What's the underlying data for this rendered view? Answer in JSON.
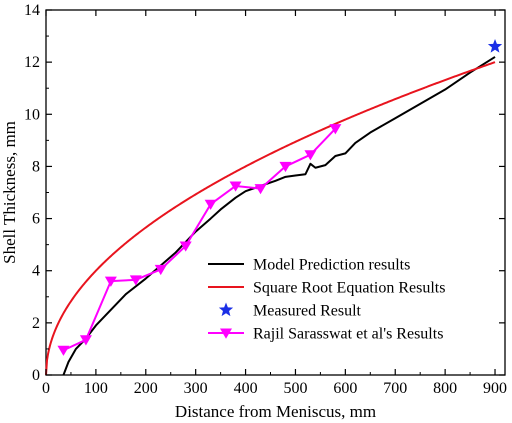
{
  "chart_data": {
    "type": "line",
    "title": "",
    "xlabel": "Distance from Meniscus, mm",
    "ylabel": "Shell Thickness, mm",
    "xlim": [
      0,
      920
    ],
    "ylim": [
      0,
      14
    ],
    "xticks": [
      0,
      100,
      200,
      300,
      400,
      500,
      600,
      700,
      800,
      900
    ],
    "yticks": [
      0,
      2,
      4,
      6,
      8,
      10,
      12,
      14
    ],
    "grid": false,
    "legend_position": "bottom-right",
    "series": [
      {
        "name": "Model Prediction results",
        "type": "line",
        "color": "#000000",
        "marker": "none",
        "x": [
          35,
          45,
          60,
          80,
          100,
          130,
          160,
          200,
          230,
          260,
          300,
          330,
          350,
          380,
          400,
          430,
          460,
          480,
          500,
          520,
          530,
          540,
          560,
          580,
          600,
          620,
          650,
          700,
          750,
          800,
          850,
          900
        ],
        "y": [
          0,
          0.5,
          1.0,
          1.4,
          1.9,
          2.5,
          3.1,
          3.7,
          4.2,
          4.7,
          5.5,
          6.0,
          6.35,
          6.8,
          7.05,
          7.25,
          7.45,
          7.6,
          7.65,
          7.7,
          8.1,
          7.95,
          8.05,
          8.4,
          8.5,
          8.9,
          9.3,
          9.85,
          10.4,
          10.95,
          11.6,
          12.2
        ]
      },
      {
        "name": "Square Root Equation Results",
        "type": "line",
        "color": "#e8141e",
        "marker": "none",
        "function": "y = 0.4 * sqrt(x)",
        "x_range": [
          0,
          900
        ]
      },
      {
        "name": "Measured Result",
        "type": "scatter",
        "color": "#1a2ee6",
        "marker": "star",
        "x": [
          900
        ],
        "y": [
          12.6
        ]
      },
      {
        "name": "Rajil Sarasswat et al's Results",
        "type": "line",
        "color": "#ff00ff",
        "marker": "triangle-down",
        "x": [
          35,
          80,
          130,
          180,
          230,
          280,
          330,
          380,
          430,
          480,
          530,
          580
        ],
        "y": [
          0.95,
          1.35,
          3.6,
          3.65,
          4.05,
          4.95,
          6.55,
          7.25,
          7.15,
          8.0,
          8.45,
          9.45
        ]
      }
    ]
  }
}
